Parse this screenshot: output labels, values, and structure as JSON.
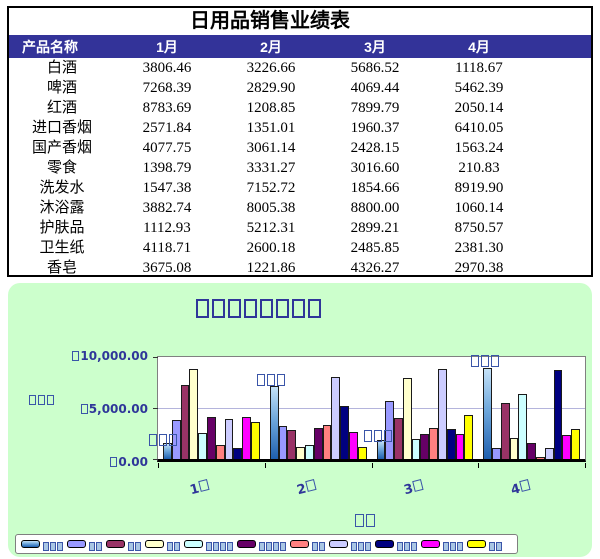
{
  "table": {
    "title": "日用品销售业绩表",
    "header": {
      "name_col": "产品名称",
      "months": [
        "1月",
        "2月",
        "3月",
        "4月"
      ]
    },
    "rows": [
      {
        "name": "白酒",
        "values": [
          "3806.46",
          "3226.66",
          "5686.52",
          "1118.67"
        ]
      },
      {
        "name": "啤酒",
        "values": [
          "7268.39",
          "2829.90",
          "4069.44",
          "5462.39"
        ]
      },
      {
        "name": "红酒",
        "values": [
          "8783.69",
          "1208.85",
          "7899.79",
          "2050.14"
        ]
      },
      {
        "name": "进口香烟",
        "values": [
          "2571.84",
          "1351.01",
          "1960.37",
          "6410.05"
        ]
      },
      {
        "name": "国产香烟",
        "values": [
          "4077.75",
          "3061.14",
          "2428.15",
          "1563.24"
        ]
      },
      {
        "name": "零食",
        "values": [
          "1398.79",
          "3331.27",
          "3016.60",
          "210.83"
        ]
      },
      {
        "name": "洗发水",
        "values": [
          "1547.38",
          "7152.72",
          "1854.66",
          "8919.90"
        ]
      },
      {
        "name": "沐浴露",
        "values": [
          "3882.74",
          "8005.38",
          "8800.00",
          "1060.14"
        ]
      },
      {
        "name": "护肤品",
        "values": [
          "1112.93",
          "5212.31",
          "2899.21",
          "8750.57"
        ]
      },
      {
        "name": "卫生纸",
        "values": [
          "4118.71",
          "2600.18",
          "2485.85",
          "2381.30"
        ]
      },
      {
        "name": "香皂",
        "values": [
          "3675.08",
          "1221.86",
          "4326.27",
          "2970.38"
        ]
      }
    ]
  },
  "colors": {
    "header_bg": "#333399",
    "chart_bg": "#CCFFCC",
    "label_blue": "#2F3699",
    "gridline": "#B4B4DC"
  },
  "chart_data": {
    "type": "bar",
    "note": "Chinese glyphs inside the chart render as hollow missing-glyph boxes (□) in the screenshot",
    "title_rendered": "□□□□□□□□",
    "y_axis_title_rendered": "□□□",
    "x_axis_title_rendered": "□□",
    "categories": [
      "1月",
      "2月",
      "3月",
      "4月"
    ],
    "categories_rendered": [
      "1□",
      "2□",
      "3□",
      "4□"
    ],
    "ylim": [
      0,
      10000
    ],
    "y_tick_labels": [
      "□0.00",
      "□5,000.00",
      "□10,000.00"
    ],
    "grid": "horizontal line at 5000",
    "legend_position": "bottom",
    "series": [
      {
        "name": "洗发水",
        "label_boxes": 3,
        "gradient": true,
        "color": "#3A7BC8",
        "values": [
          1547.38,
          7152.72,
          1854.66,
          8919.9
        ]
      },
      {
        "name": "白酒",
        "label_boxes": 2,
        "gradient": false,
        "color": "#9999FF",
        "values": [
          3806.46,
          3226.66,
          5686.52,
          1118.67
        ]
      },
      {
        "name": "啤酒",
        "label_boxes": 2,
        "gradient": false,
        "color": "#993366",
        "values": [
          7268.39,
          2829.9,
          4069.44,
          5462.39
        ]
      },
      {
        "name": "红酒",
        "label_boxes": 2,
        "gradient": false,
        "color": "#FFFFCC",
        "values": [
          8783.69,
          1208.85,
          7899.79,
          2050.14
        ]
      },
      {
        "name": "进口香烟",
        "label_boxes": 4,
        "gradient": false,
        "color": "#CCFFFF",
        "values": [
          2571.84,
          1351.01,
          1960.37,
          6410.05
        ]
      },
      {
        "name": "国产香烟",
        "label_boxes": 4,
        "gradient": false,
        "color": "#660066",
        "values": [
          4077.75,
          3061.14,
          2428.15,
          1563.24
        ]
      },
      {
        "name": "零食",
        "label_boxes": 2,
        "gradient": false,
        "color": "#FF8080",
        "values": [
          1398.79,
          3331.27,
          3016.6,
          210.83
        ]
      },
      {
        "name": "沐浴露",
        "label_boxes": 3,
        "gradient": false,
        "color": "#CCCCFF",
        "values": [
          3882.74,
          8005.38,
          8800.0,
          1060.14
        ]
      },
      {
        "name": "护肤品",
        "label_boxes": 3,
        "gradient": false,
        "color": "#000080",
        "values": [
          1112.93,
          5212.31,
          2899.21,
          8750.57
        ]
      },
      {
        "name": "卫生纸",
        "label_boxes": 3,
        "gradient": false,
        "color": "#FF00FF",
        "values": [
          4118.71,
          2600.18,
          2485.85,
          2381.3
        ]
      },
      {
        "name": "香皂",
        "label_boxes": 2,
        "gradient": false,
        "color": "#FFFF00",
        "values": [
          3675.08,
          1221.86,
          4326.27,
          2970.38
        ]
      }
    ],
    "annotations": [
      {
        "series_index": 0,
        "category_index": 0,
        "boxes": 3
      },
      {
        "series_index": 0,
        "category_index": 1,
        "boxes": 3
      },
      {
        "series_index": 0,
        "category_index": 2,
        "boxes": 3
      },
      {
        "series_index": 0,
        "category_index": 3,
        "boxes": 3
      }
    ]
  }
}
